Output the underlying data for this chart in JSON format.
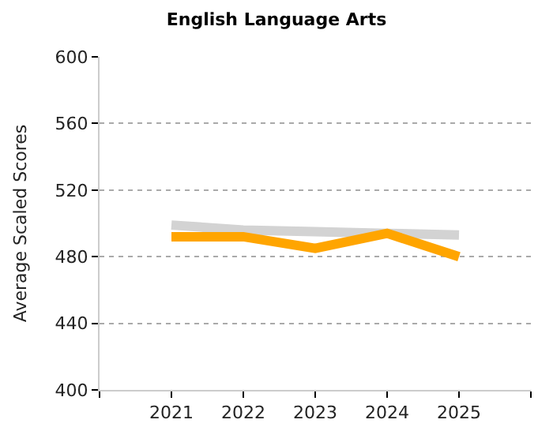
{
  "chart_data": {
    "type": "line",
    "title": "English Language Arts",
    "ylabel": "Average Scaled Scores",
    "x": [
      2021,
      2022,
      2023,
      2024,
      2025
    ],
    "series": [
      {
        "color": "#d3d3d3",
        "values": [
          499,
          496,
          495,
          494,
          493
        ]
      },
      {
        "color": "#ffa500",
        "values": [
          492,
          492,
          485,
          494,
          480
        ]
      }
    ],
    "xlim": [
      2020,
      2026
    ],
    "xticks": [
      {
        "value": 2020,
        "label": null
      },
      2021,
      2022,
      2023,
      2024,
      2025,
      {
        "value": 2026,
        "label": null
      }
    ],
    "ylim": [
      400,
      600
    ],
    "yticks": [
      400,
      440,
      480,
      520,
      560,
      600
    ],
    "grid": "y",
    "marker": "none",
    "line_style": "solid"
  }
}
